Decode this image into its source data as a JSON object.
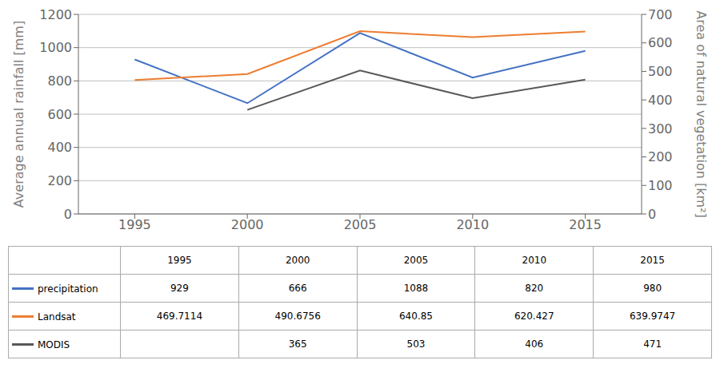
{
  "chart_data": {
    "type": "line",
    "x": [
      1995,
      2000,
      2005,
      2010,
      2015
    ],
    "xlim": [
      1992.5,
      2017.5
    ],
    "xticks": [
      1995,
      2000,
      2005,
      2010,
      2015
    ],
    "ylabel": "Average annual rainfall [mm]",
    "y2label": "Area of natural vegetation [km²]",
    "ylim": [
      0,
      1200
    ],
    "yticks": [
      0,
      200,
      400,
      600,
      800,
      1000,
      1200
    ],
    "y2lim": [
      0,
      700
    ],
    "y2ticks": [
      0,
      100,
      200,
      300,
      400,
      500,
      600,
      700
    ],
    "grid": "y",
    "series": [
      {
        "name": "precipitation",
        "color": "#4472C4",
        "values": [
          929,
          666,
          1088,
          820,
          980
        ]
      },
      {
        "name": "Landsat",
        "color": "#ED7D31",
        "values": [
          469.7114,
          490.6756,
          640.85,
          620.427,
          639.9747
        ],
        "axis": "y2"
      },
      {
        "name": "MODIS",
        "color": "#595959",
        "values": [
          null,
          365,
          503,
          406,
          471
        ],
        "axis": "y2"
      }
    ]
  }
}
